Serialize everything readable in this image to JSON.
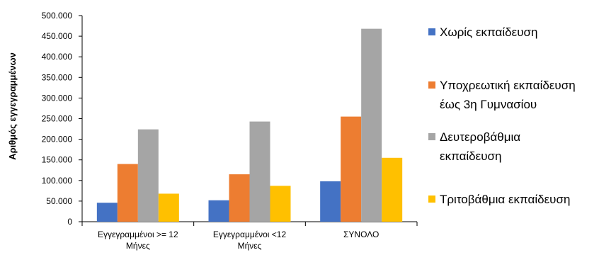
{
  "chart_data": {
    "type": "bar",
    "ylabel": "Αριθμός εγγεγραμμένων",
    "xlabel": "",
    "ylim": [
      0,
      500000
    ],
    "y_ticks": [
      0,
      50000,
      100000,
      150000,
      200000,
      250000,
      300000,
      350000,
      400000,
      450000,
      500000
    ],
    "y_tick_labels": [
      "0",
      "50.000",
      "100.000",
      "150.000",
      "200.000",
      "250.000",
      "300.000",
      "350.000",
      "400.000",
      "450.000",
      "500.000"
    ],
    "categories": [
      [
        "Εγγεγραμμένοι  >= 12",
        "Μήνες"
      ],
      [
        "Εγγεγραμμένοι  <12",
        "Μήνες"
      ],
      [
        "ΣΥΝΟΛΟ"
      ]
    ],
    "series": [
      {
        "name": "Χωρίς εκπαίδευση",
        "legend_lines": [
          "Χωρίς εκπαίδευση"
        ],
        "color": "#4472C4",
        "values": [
          46000,
          52000,
          98000
        ]
      },
      {
        "name": "Υποχρεωτική εκπαίδευση έως 3η Γυμνασίου",
        "legend_lines": [
          "Υποχρεωτική εκπαίδευση",
          "έως 3η Γυμνασίου"
        ],
        "color": "#ED7D31",
        "values": [
          140000,
          115000,
          255000
        ]
      },
      {
        "name": "Δευτεροβάθμια εκπαίδευση",
        "legend_lines": [
          "Δευτεροβάθμια",
          "εκπαίδευση"
        ],
        "color": "#A5A5A5",
        "values": [
          224000,
          243000,
          468000
        ]
      },
      {
        "name": "Τριτοβάθμια εκπαίδευση",
        "legend_lines": [
          "Τριτοβάθμια εκπαίδευση"
        ],
        "color": "#FFC000",
        "values": [
          68000,
          87000,
          155000
        ]
      }
    ],
    "grid": false,
    "legend_position": "right"
  }
}
